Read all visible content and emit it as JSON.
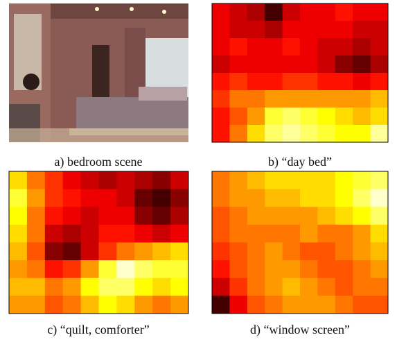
{
  "panels": [
    {
      "caption": "a) bedroom scene"
    },
    {
      "caption": "b) “day bed”",
      "heatmap": [
        [
          0.35,
          0.3,
          0.25,
          0.1,
          0.3,
          0.35,
          0.35,
          0.4,
          0.35,
          0.35
        ],
        [
          0.35,
          0.3,
          0.3,
          0.25,
          0.35,
          0.35,
          0.35,
          0.35,
          0.3,
          0.3
        ],
        [
          0.35,
          0.4,
          0.35,
          0.35,
          0.4,
          0.35,
          0.3,
          0.3,
          0.25,
          0.3
        ],
        [
          0.3,
          0.35,
          0.35,
          0.35,
          0.35,
          0.35,
          0.3,
          0.2,
          0.15,
          0.25
        ],
        [
          0.4,
          0.45,
          0.4,
          0.4,
          0.45,
          0.45,
          0.4,
          0.4,
          0.35,
          0.4
        ],
        [
          0.45,
          0.55,
          0.55,
          0.6,
          0.6,
          0.6,
          0.6,
          0.6,
          0.6,
          0.65
        ],
        [
          0.4,
          0.5,
          0.6,
          0.8,
          0.85,
          0.8,
          0.75,
          0.7,
          0.65,
          0.7
        ],
        [
          0.4,
          0.55,
          0.7,
          0.85,
          0.9,
          0.85,
          0.8,
          0.75,
          0.75,
          0.9
        ]
      ]
    },
    {
      "caption": "c) “quilt, comforter”",
      "heatmap": [
        [
          0.7,
          0.55,
          0.45,
          0.35,
          0.3,
          0.25,
          0.3,
          0.25,
          0.2,
          0.3
        ],
        [
          0.8,
          0.6,
          0.45,
          0.4,
          0.35,
          0.35,
          0.3,
          0.15,
          0.1,
          0.2
        ],
        [
          0.75,
          0.55,
          0.4,
          0.35,
          0.3,
          0.35,
          0.35,
          0.2,
          0.15,
          0.25
        ],
        [
          0.7,
          0.55,
          0.3,
          0.25,
          0.3,
          0.4,
          0.4,
          0.35,
          0.3,
          0.35
        ],
        [
          0.65,
          0.5,
          0.2,
          0.15,
          0.3,
          0.45,
          0.55,
          0.6,
          0.65,
          0.7
        ],
        [
          0.6,
          0.55,
          0.4,
          0.45,
          0.6,
          0.8,
          0.95,
          0.85,
          0.8,
          0.8
        ],
        [
          0.65,
          0.65,
          0.55,
          0.6,
          0.75,
          0.85,
          0.85,
          0.75,
          0.7,
          0.75
        ],
        [
          0.6,
          0.6,
          0.5,
          0.55,
          0.65,
          0.75,
          0.7,
          0.6,
          0.55,
          0.6
        ]
      ]
    },
    {
      "caption": "d) “window screen”",
      "heatmap": [
        [
          0.55,
          0.6,
          0.65,
          0.7,
          0.7,
          0.7,
          0.7,
          0.75,
          0.8,
          0.85
        ],
        [
          0.55,
          0.6,
          0.6,
          0.65,
          0.65,
          0.7,
          0.7,
          0.75,
          0.85,
          0.95
        ],
        [
          0.5,
          0.55,
          0.6,
          0.6,
          0.6,
          0.6,
          0.65,
          0.7,
          0.75,
          0.85
        ],
        [
          0.5,
          0.55,
          0.55,
          0.55,
          0.55,
          0.6,
          0.55,
          0.55,
          0.6,
          0.7
        ],
        [
          0.45,
          0.5,
          0.55,
          0.6,
          0.55,
          0.5,
          0.5,
          0.55,
          0.6,
          0.65
        ],
        [
          0.4,
          0.5,
          0.55,
          0.6,
          0.6,
          0.55,
          0.5,
          0.5,
          0.55,
          0.6
        ],
        [
          0.3,
          0.45,
          0.55,
          0.6,
          0.65,
          0.6,
          0.55,
          0.5,
          0.55,
          0.55
        ],
        [
          0.1,
          0.35,
          0.5,
          0.55,
          0.6,
          0.6,
          0.6,
          0.55,
          0.5,
          0.5
        ]
      ]
    }
  ]
}
